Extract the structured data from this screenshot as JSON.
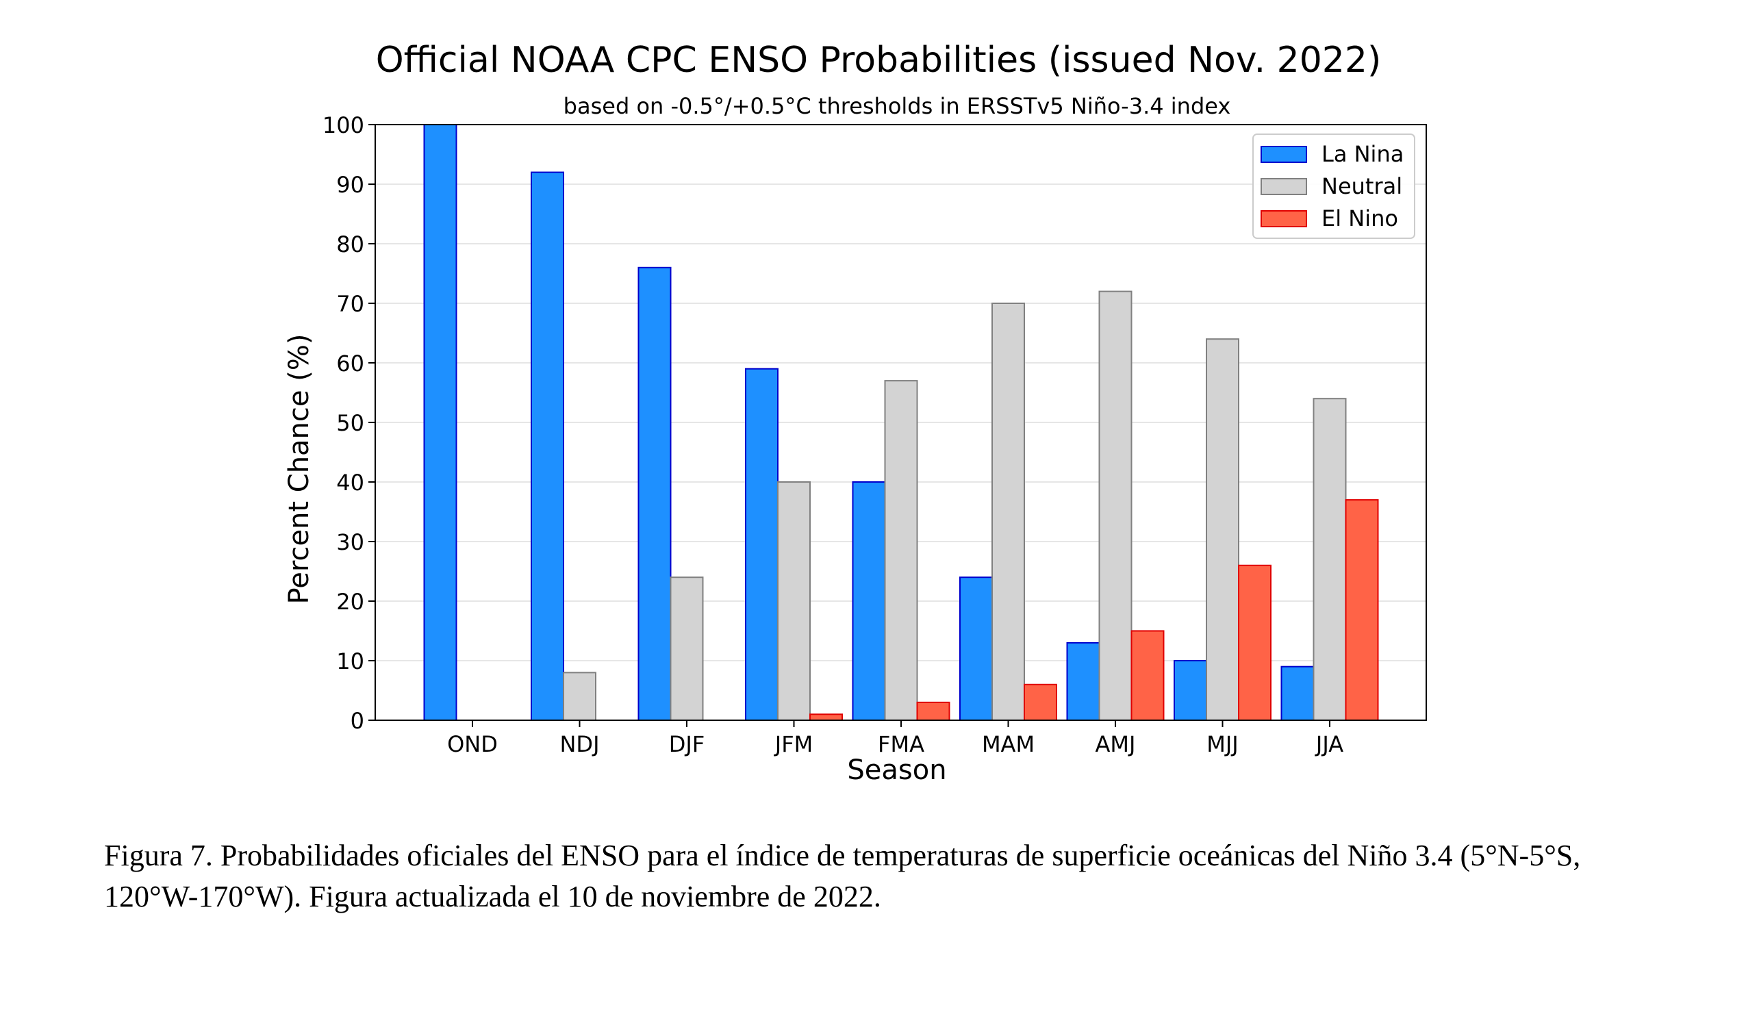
{
  "chart_data": {
    "type": "bar",
    "title": "Official NOAA CPC ENSO Probabilities (issued Nov. 2022)",
    "subtitle": "based on -0.5°/+0.5°C thresholds in ERSSTv5 Niño-3.4 index",
    "xlabel": "Season",
    "ylabel": "Percent Chance (%)",
    "ylim": [
      0,
      100
    ],
    "yticks": [
      "0",
      "10",
      "20",
      "30",
      "40",
      "50",
      "60",
      "70",
      "80",
      "90",
      "100"
    ],
    "grid": true,
    "legend_position": "top-right",
    "categories": [
      "OND",
      "NDJ",
      "DJF",
      "JFM",
      "FMA",
      "MAM",
      "AMJ",
      "MJJ",
      "JJA"
    ],
    "series": [
      {
        "name": "La Nina",
        "color": "#1e90ff",
        "edge": "#0000cc",
        "values": [
          100,
          92,
          76,
          59,
          40,
          24,
          13,
          10,
          9
        ]
      },
      {
        "name": "Neutral",
        "color": "#d3d3d3",
        "edge": "#808080",
        "values": [
          0,
          8,
          24,
          40,
          57,
          70,
          72,
          64,
          54
        ]
      },
      {
        "name": "El Nino",
        "color": "#ff6347",
        "edge": "#e00000",
        "values": [
          0,
          0,
          0,
          1,
          3,
          6,
          15,
          26,
          37
        ]
      }
    ]
  },
  "caption": "Figura 7. Probabilidades oficiales del ENSO para el índice de temperaturas de superficie oceánicas del Niño 3.4 (5°N-5°S, 120°W-170°W). Figura actualizada el 10 de noviembre de 2022."
}
